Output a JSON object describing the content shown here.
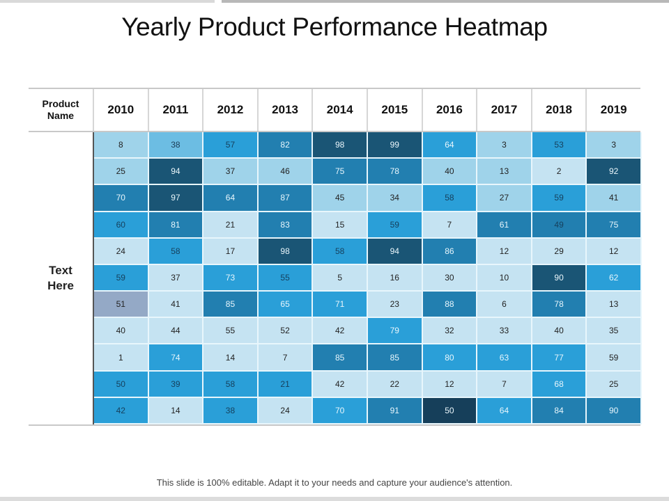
{
  "title": "Yearly Product Performance Heatmap",
  "footer": "This slide is 100% editable. Adapt it to your needs and capture your audience's attention.",
  "chart_data": {
    "type": "heatmap",
    "title": "Yearly Product Performance Heatmap",
    "row_header_label": "Product Name",
    "row_group_label": "Text Here",
    "columns": [
      "2010",
      "2011",
      "2012",
      "2013",
      "2014",
      "2015",
      "2016",
      "2017",
      "2018",
      "2019"
    ],
    "values": [
      [
        8,
        38,
        57,
        82,
        98,
        99,
        64,
        3,
        53,
        3
      ],
      [
        25,
        94,
        37,
        46,
        75,
        78,
        40,
        13,
        2,
        92
      ],
      [
        70,
        97,
        64,
        87,
        45,
        34,
        58,
        27,
        59,
        41
      ],
      [
        60,
        81,
        21,
        83,
        15,
        59,
        7,
        61,
        49,
        75
      ],
      [
        24,
        58,
        17,
        98,
        58,
        94,
        86,
        12,
        29,
        12
      ],
      [
        59,
        37,
        73,
        55,
        5,
        16,
        30,
        10,
        90,
        62
      ],
      [
        51,
        41,
        85,
        65,
        71,
        23,
        88,
        6,
        78,
        13
      ],
      [
        40,
        44,
        55,
        52,
        42,
        79,
        32,
        33,
        40,
        35
      ],
      [
        1,
        74,
        14,
        7,
        85,
        85,
        80,
        63,
        77,
        59
      ],
      [
        50,
        39,
        58,
        21,
        42,
        22,
        12,
        7,
        68,
        25
      ],
      [
        42,
        14,
        38,
        24,
        70,
        91,
        50,
        64,
        84,
        90
      ]
    ],
    "cell_color_classes": [
      [
        "c1",
        "c2",
        "c3",
        "c4",
        "c5",
        "c5",
        "c3w",
        "c1",
        "c3",
        "c1"
      ],
      [
        "c1",
        "c5",
        "c1",
        "c1",
        "c4",
        "c4",
        "c1",
        "c1",
        "c0",
        "c5"
      ],
      [
        "c4",
        "c5",
        "c4",
        "c4",
        "c1",
        "c1",
        "c3",
        "c1",
        "c3",
        "c1"
      ],
      [
        "c3",
        "c4",
        "c0",
        "c4",
        "c0",
        "c3",
        "c0",
        "c4",
        "c4d",
        "c4"
      ],
      [
        "c0",
        "c3",
        "c0",
        "c5",
        "c3",
        "c5",
        "c4",
        "c0",
        "c0",
        "c0"
      ],
      [
        "c3",
        "c0",
        "c3w",
        "c3",
        "c0",
        "c0",
        "c0",
        "c0",
        "c5",
        "c3w"
      ],
      [
        "cg",
        "c0",
        "c4",
        "c3w",
        "c3w",
        "c0",
        "c4",
        "c0",
        "c4",
        "c0"
      ],
      [
        "c0",
        "c0",
        "c0",
        "c0",
        "c0",
        "c3w",
        "c0",
        "c0",
        "c0",
        "c0"
      ],
      [
        "c0",
        "c3w",
        "c0",
        "c0",
        "c4",
        "c4",
        "c3w",
        "c3w",
        "c3w",
        "c0"
      ],
      [
        "c3",
        "c3",
        "c3",
        "c3",
        "c0",
        "c0",
        "c0",
        "c0",
        "c3w",
        "c0"
      ],
      [
        "c3",
        "c0",
        "c3",
        "c0",
        "c3w",
        "c4",
        "c5b",
        "c3w",
        "c4",
        "c4"
      ]
    ],
    "colors": {
      "very_light": "#c5e3f2",
      "light": "#9fd3ea",
      "light_medium": "#6cbde3",
      "medium": "#2a9fd8",
      "dark": "#227fb0",
      "darkest": "#1a5575",
      "gray_highlight": "#94a9c6"
    }
  }
}
